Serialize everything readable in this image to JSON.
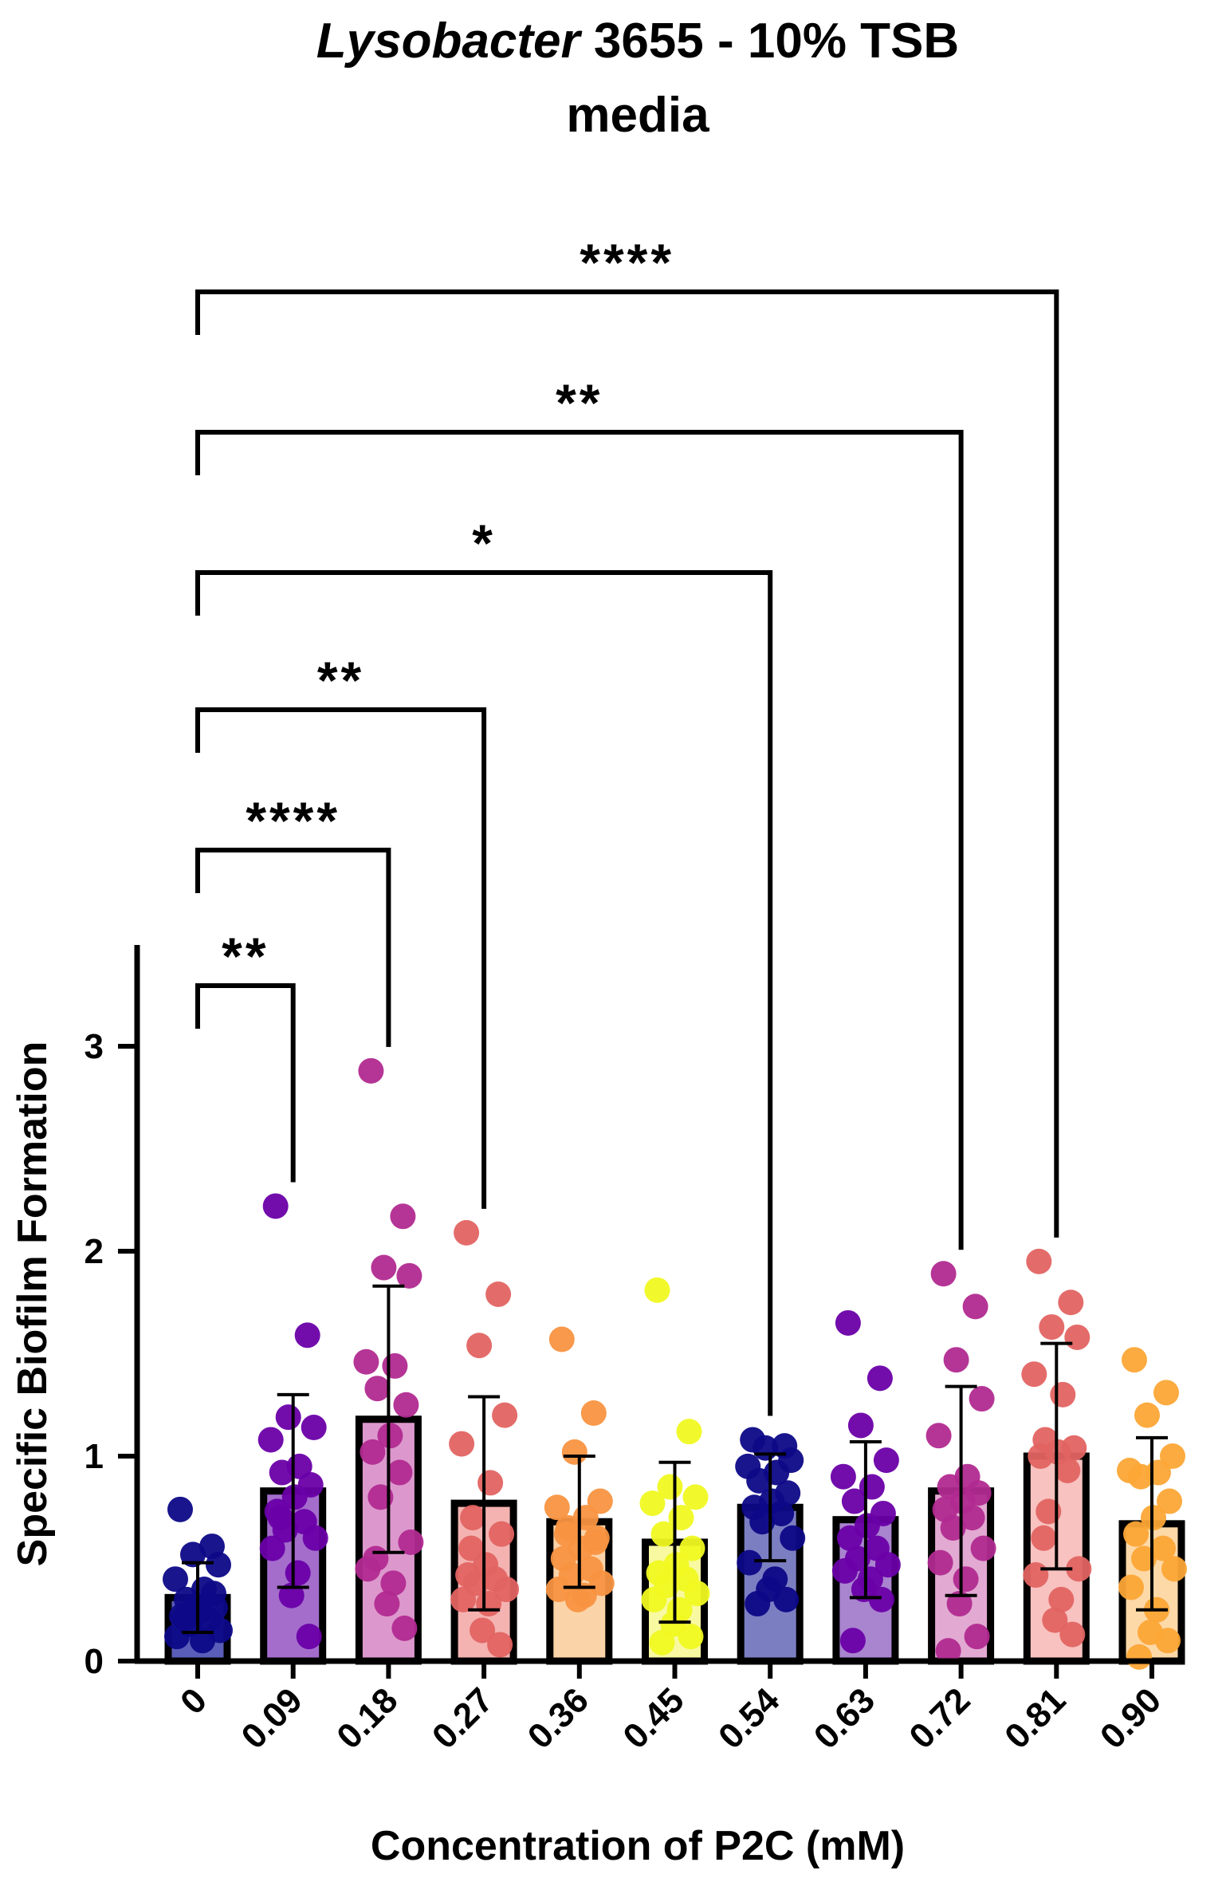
{
  "chart_data": {
    "type": "bar",
    "title_italic": "Lysobacter",
    "title_rest": " 3655 - 10% TSB",
    "title_line2": "media",
    "xlabel": "Concentration of P2C (mM)",
    "ylabel": "Specific Biofilm Formation",
    "ylim": [
      0,
      3.5
    ],
    "yticks": [
      "0",
      "1",
      "2",
      "3"
    ],
    "categories": [
      "0",
      "0.09",
      "0.18",
      "0.27",
      "0.36",
      "0.45",
      "0.54",
      "0.63",
      "0.72",
      "0.81",
      "0.90"
    ],
    "means": [
      0.31,
      0.83,
      1.18,
      0.77,
      0.68,
      0.58,
      0.75,
      0.69,
      0.83,
      1.0,
      0.67
    ],
    "sd": [
      0.17,
      0.47,
      0.65,
      0.52,
      0.32,
      0.39,
      0.26,
      0.38,
      0.51,
      0.55,
      0.42
    ],
    "colors": [
      "#0d0887",
      "#6a00a8",
      "#b12a90",
      "#e16462",
      "#f89441",
      "#f0f921",
      "#0d0887",
      "#6a00a8",
      "#b12a90",
      "#e16462",
      "#fca636"
    ],
    "bar_fills": [
      "#5a5eb8",
      "#a46dcc",
      "#dc98cc",
      "#f4b3b1",
      "#fbd3a8",
      "#f8f9a0",
      "#7b7fc2",
      "#a984cf",
      "#e2aad2",
      "#f7c2c0",
      "#fdd9a8"
    ],
    "points": [
      [
        0.74,
        0.56,
        0.52,
        0.47,
        0.4,
        0.35,
        0.3,
        0.26,
        0.24,
        0.22,
        0.2,
        0.18,
        0.15,
        0.12,
        0.1,
        0.27,
        0.33,
        0.21
      ],
      [
        2.22,
        1.59,
        1.19,
        1.14,
        1.08,
        0.95,
        0.92,
        0.86,
        0.8,
        0.73,
        0.68,
        0.64,
        0.6,
        0.55,
        0.43,
        0.32,
        0.12,
        0.7
      ],
      [
        2.88,
        2.17,
        1.92,
        1.88,
        1.46,
        1.44,
        1.33,
        1.25,
        1.1,
        1.02,
        0.92,
        0.8,
        0.58,
        0.45,
        0.38,
        0.28,
        0.16,
        0.5
      ],
      [
        2.09,
        1.79,
        1.54,
        1.2,
        1.06,
        0.87,
        0.7,
        0.62,
        0.47,
        0.42,
        0.4,
        0.38,
        0.35,
        0.3,
        0.28,
        0.15,
        0.08,
        0.55
      ],
      [
        1.57,
        1.21,
        1.02,
        0.78,
        0.75,
        0.7,
        0.65,
        0.6,
        0.55,
        0.5,
        0.45,
        0.42,
        0.38,
        0.35,
        0.32,
        0.3,
        0.58,
        0.62
      ],
      [
        1.81,
        1.12,
        0.85,
        0.8,
        0.77,
        0.7,
        0.62,
        0.55,
        0.47,
        0.43,
        0.4,
        0.37,
        0.33,
        0.3,
        0.25,
        0.18,
        0.12,
        0.09
      ],
      [
        1.08,
        1.05,
        1.04,
        0.98,
        0.95,
        0.92,
        0.88,
        0.82,
        0.78,
        0.75,
        0.72,
        0.68,
        0.6,
        0.48,
        0.4,
        0.35,
        0.3,
        0.28
      ],
      [
        1.65,
        1.38,
        1.15,
        0.98,
        0.9,
        0.85,
        0.78,
        0.72,
        0.66,
        0.6,
        0.55,
        0.5,
        0.47,
        0.44,
        0.4,
        0.35,
        0.3,
        0.1
      ],
      [
        1.89,
        1.73,
        1.47,
        1.28,
        1.1,
        0.9,
        0.85,
        0.82,
        0.78,
        0.74,
        0.7,
        0.65,
        0.55,
        0.48,
        0.4,
        0.28,
        0.12,
        0.05
      ],
      [
        1.95,
        1.75,
        1.63,
        1.58,
        1.4,
        1.3,
        1.08,
        1.04,
        1.02,
        1.0,
        0.93,
        0.73,
        0.45,
        0.42,
        0.3,
        0.2,
        0.13,
        0.6
      ],
      [
        1.47,
        1.31,
        1.2,
        1.0,
        0.93,
        0.92,
        0.9,
        0.78,
        0.7,
        0.62,
        0.55,
        0.5,
        0.45,
        0.36,
        0.25,
        0.14,
        0.1,
        0.02
      ]
    ],
    "comparisons": [
      {
        "from": 0,
        "to": 1,
        "stars": "**",
        "level": 0
      },
      {
        "from": 0,
        "to": 2,
        "stars": "****",
        "level": 1
      },
      {
        "from": 0,
        "to": 3,
        "stars": "**",
        "level": 2
      },
      {
        "from": 0,
        "to": 6,
        "stars": "*",
        "level": 3
      },
      {
        "from": 0,
        "to": 8,
        "stars": "**",
        "level": 4
      },
      {
        "from": 0,
        "to": 9,
        "stars": "****",
        "level": 5
      }
    ]
  }
}
